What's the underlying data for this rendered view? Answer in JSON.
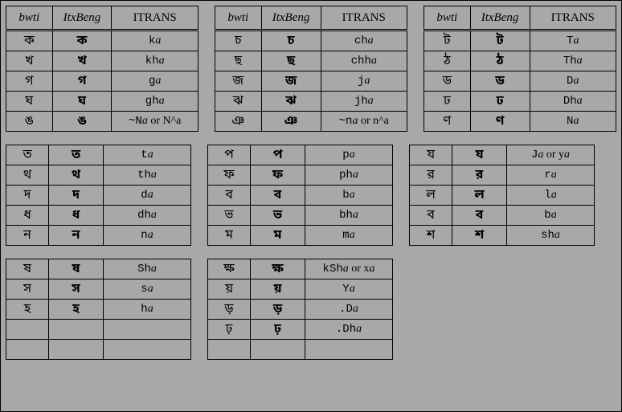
{
  "headers": {
    "h1": "bwti",
    "h2": "ItxBeng",
    "h3": "ITRANS"
  },
  "tables": [
    [
      {
        "b": "ক",
        "x": "ক",
        "tt": "k",
        "suf": "a"
      },
      {
        "b": "খ",
        "x": "খ",
        "tt": "kh",
        "suf": "a"
      },
      {
        "b": "গ",
        "x": "গ",
        "tt": "g",
        "suf": "a"
      },
      {
        "b": "ঘ",
        "x": "ঘ",
        "tt": "gh",
        "suf": "a"
      },
      {
        "b": "ঙ",
        "x": "ঙ",
        "tt": "~N",
        "suf": "a",
        "extra": " or N^a"
      }
    ],
    [
      {
        "b": "চ",
        "x": "চ",
        "tt": "ch",
        "suf": "a"
      },
      {
        "b": "ছ",
        "x": "ছ",
        "tt": "chh",
        "suf": "a"
      },
      {
        "b": "জ",
        "x": "জ",
        "tt": "j",
        "suf": "a"
      },
      {
        "b": "ঝ",
        "x": "ঝ",
        "tt": "jh",
        "suf": "a"
      },
      {
        "b": "ঞ",
        "x": "ঞ",
        "tt": "~n",
        "suf": "a",
        "extra": " or n^a"
      }
    ],
    [
      {
        "b": "ট",
        "x": "ট",
        "tt": "T",
        "suf": "a"
      },
      {
        "b": "ঠ",
        "x": "ঠ",
        "tt": "Th",
        "suf": "a"
      },
      {
        "b": "ড",
        "x": "ড",
        "tt": "D",
        "suf": "a"
      },
      {
        "b": "ঢ",
        "x": "ঢ",
        "tt": "Dh",
        "suf": "a"
      },
      {
        "b": "ণ",
        "x": "ণ",
        "tt": "N",
        "suf": "a"
      }
    ],
    [
      {
        "b": "ত",
        "x": "ত",
        "tt": "t",
        "suf": "a"
      },
      {
        "b": "থ",
        "x": "থ",
        "tt": "th",
        "suf": "a"
      },
      {
        "b": "দ",
        "x": "দ",
        "tt": "d",
        "suf": "a"
      },
      {
        "b": "ধ",
        "x": "ধ",
        "tt": "dh",
        "suf": "a"
      },
      {
        "b": "ন",
        "x": "ন",
        "tt": "n",
        "suf": "a"
      }
    ],
    [
      {
        "b": "প",
        "x": "প",
        "tt": "p",
        "suf": "a"
      },
      {
        "b": "ফ",
        "x": "ফ",
        "tt": "ph",
        "suf": "a"
      },
      {
        "b": "ব",
        "x": "ব",
        "tt": "b",
        "suf": "a"
      },
      {
        "b": "ভ",
        "x": "ভ",
        "tt": "bh",
        "suf": "a"
      },
      {
        "b": "ম",
        "x": "ম",
        "tt": "m",
        "suf": "a"
      }
    ],
    [
      {
        "b": "য",
        "x": "য",
        "tt": "J",
        "suf": "a",
        "extra": " or y",
        "extraSuf": "a"
      },
      {
        "b": "র",
        "x": "র",
        "tt": "r",
        "suf": "a"
      },
      {
        "b": "ল",
        "x": "ল",
        "tt": "l",
        "suf": "a"
      },
      {
        "b": "ব",
        "x": "ব",
        "tt": "b",
        "suf": "a"
      },
      {
        "b": "শ",
        "x": "শ",
        "tt": "sh",
        "suf": "a"
      }
    ],
    [
      {
        "b": "ষ",
        "x": "ষ",
        "tt": "Sh",
        "suf": "a"
      },
      {
        "b": "স",
        "x": "স",
        "tt": "s",
        "suf": "a"
      },
      {
        "b": "হ",
        "x": "হ",
        "tt": "h",
        "suf": "a"
      },
      {
        "empty": true
      },
      {
        "empty": true
      }
    ],
    [
      {
        "b": "ক্ষ",
        "x": "ক্ষ",
        "tt": "kSh",
        "suf": "a",
        "extra": " or x",
        "extraSuf": "a"
      },
      {
        "b": "য়",
        "x": "য়",
        "tt": "Y",
        "suf": "a"
      },
      {
        "b": "ড়",
        "x": "ড়",
        "tt": ".D",
        "suf": "a"
      },
      {
        "b": "ঢ়",
        "x": "ঢ়",
        "tt": ".Dh",
        "suf": "a"
      },
      {
        "empty": true
      }
    ]
  ],
  "layout": {
    "rows": [
      {
        "tables": [
          0,
          1,
          2
        ],
        "headers": true
      },
      {
        "tables": [
          3,
          4,
          5
        ],
        "headers": false
      },
      {
        "tables": [
          6,
          7
        ],
        "headers": false
      }
    ]
  }
}
